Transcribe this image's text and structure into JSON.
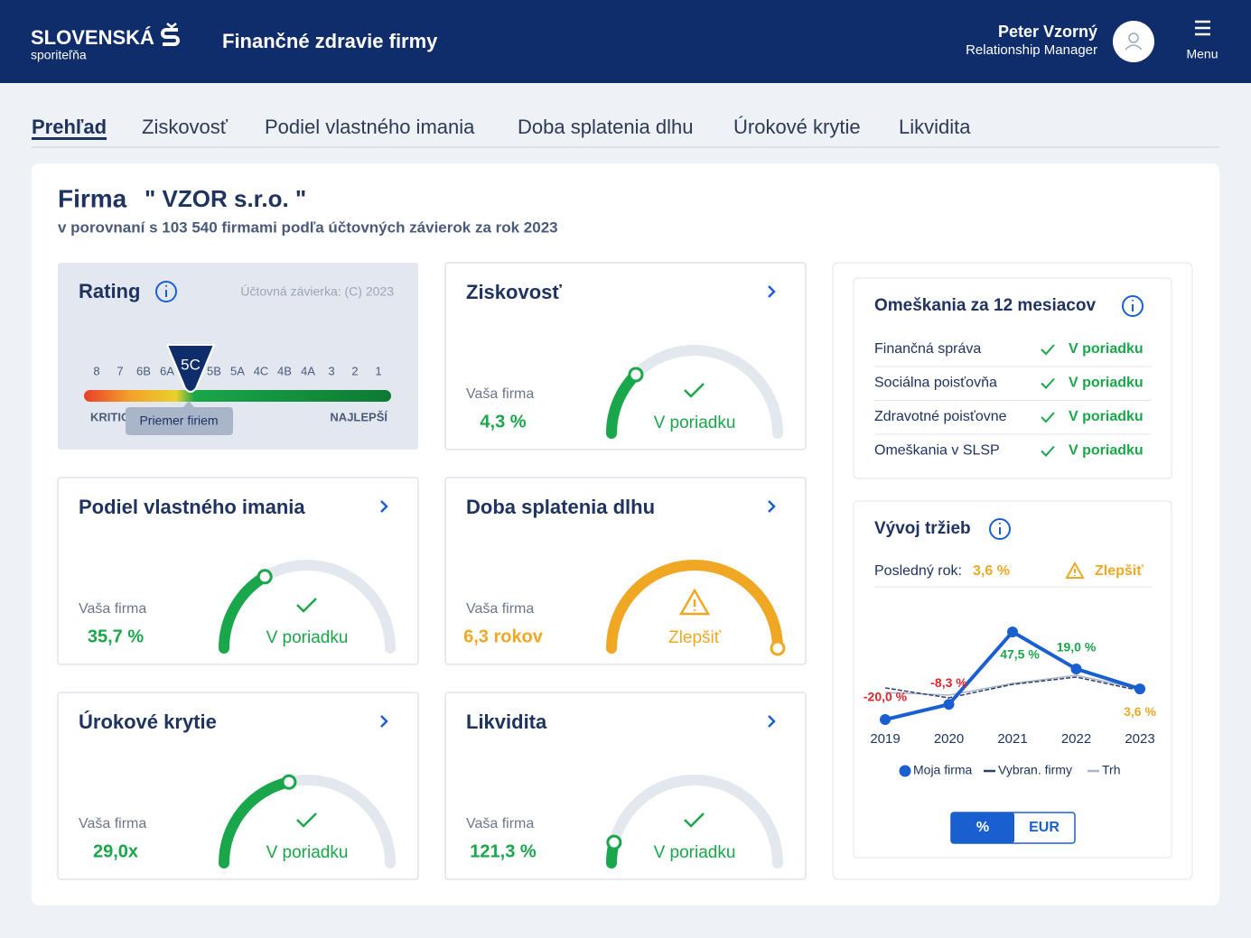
{
  "header": {
    "logo": "SLOVENSKÁ",
    "logo_sub": "sporiteľňa",
    "title": "Finančné zdravie firmy",
    "user_name": "Peter Vzorný",
    "user_role": "Relationship Manager",
    "menu": "Menu"
  },
  "tabs": [
    "Prehľad",
    "Ziskovosť",
    "Podiel vlastného imania",
    "Doba splatenia dlhu",
    "Úrokové krytie",
    "Likvidita"
  ],
  "company": {
    "label": "Firma",
    "name": "\" VZOR s.r.o. \"",
    "subtitle": "v porovnaní s 103 540 firmami podľa účtovných závierok za rok 2023"
  },
  "rating": {
    "title": "Rating",
    "source": "Účtovná závierka: (C) 2023",
    "scale": [
      "8",
      "7",
      "6B",
      "6A",
      "5C",
      "5B",
      "5A",
      "4C",
      "4B",
      "4A",
      "3",
      "2",
      "1"
    ],
    "current": "5C",
    "worst": "KRITICKÉ",
    "best": "NAJLEPŠÍ",
    "average": "Priemer firiem"
  },
  "cards": [
    {
      "title": "Ziskovosť",
      "label": "Vaša firma",
      "value": "4,3 %",
      "status": "V poriadku",
      "gauge": 0.25,
      "color": "#1aa64a",
      "icon": "check"
    },
    {
      "title": "Podiel vlastného imania",
      "label": "Vaša firma",
      "value": "35,7 %",
      "status": "V poriadku",
      "gauge": 0.33,
      "color": "#1aa64a",
      "icon": "check"
    },
    {
      "title": "Doba splatenia dlhu",
      "label": "Vaša firma",
      "value": "6,3 rokov",
      "status": "Zlepšiť",
      "gauge": 1,
      "color": "#f0a824",
      "icon": "warning"
    },
    {
      "title": "Úrokové krytie",
      "label": "Vaša firma",
      "value": "29,0x",
      "status": "V poriadku",
      "gauge": 0.43,
      "color": "#1aa64a",
      "icon": "check"
    },
    {
      "title": "Likvidita",
      "label": "Vaša firma",
      "value": "121,3 %",
      "status": "V poriadku",
      "gauge": 0.08,
      "color": "#1aa64a",
      "icon": "check"
    }
  ],
  "delays": {
    "title": "Omeškania za 12 mesiacov",
    "rows": [
      {
        "label": "Finančná správa",
        "status": "V poriadku"
      },
      {
        "label": "Sociálna poisťovňa",
        "status": "V poriadku"
      },
      {
        "label": "Zdravotné poisťovne",
        "status": "V poriadku"
      },
      {
        "label": "Omeškania v SLSP",
        "status": "V poriadku"
      }
    ]
  },
  "revenue": {
    "title": "Vývoj tržieb",
    "last_year_label": "Posledný rok:",
    "last_year_value": "3,6 %",
    "status": "Zlepšiť",
    "toggle": [
      "%",
      "EUR"
    ]
  },
  "chart_data": {
    "type": "line",
    "categories": [
      "2019",
      "2020",
      "2021",
      "2022",
      "2023"
    ],
    "ylim": [
      -25,
      55
    ],
    "series": [
      {
        "name": "Moja firma",
        "color": "#1a5fd0",
        "values": [
          -20.0,
          -8.3,
          47.5,
          19.0,
          3.6
        ],
        "value_labels": [
          "-20,0 %",
          "-8,3 %",
          "47,5 %",
          "19,0 %",
          "3,6 %"
        ],
        "value_label_colors": [
          "#e0262b",
          "#e0262b",
          "#1aa64a",
          "#1aa64a",
          "#f0a824"
        ]
      },
      {
        "name": "Vybran. firmy",
        "color": "#2a3f6b",
        "values": [
          4.4,
          -3.3,
          7.1,
          12.7,
          2.3
        ]
      },
      {
        "name": "Trh",
        "color": "#aab4c4",
        "values": [
          0.9,
          -1.2,
          7.8,
          14.1,
          3.6
        ]
      }
    ]
  }
}
